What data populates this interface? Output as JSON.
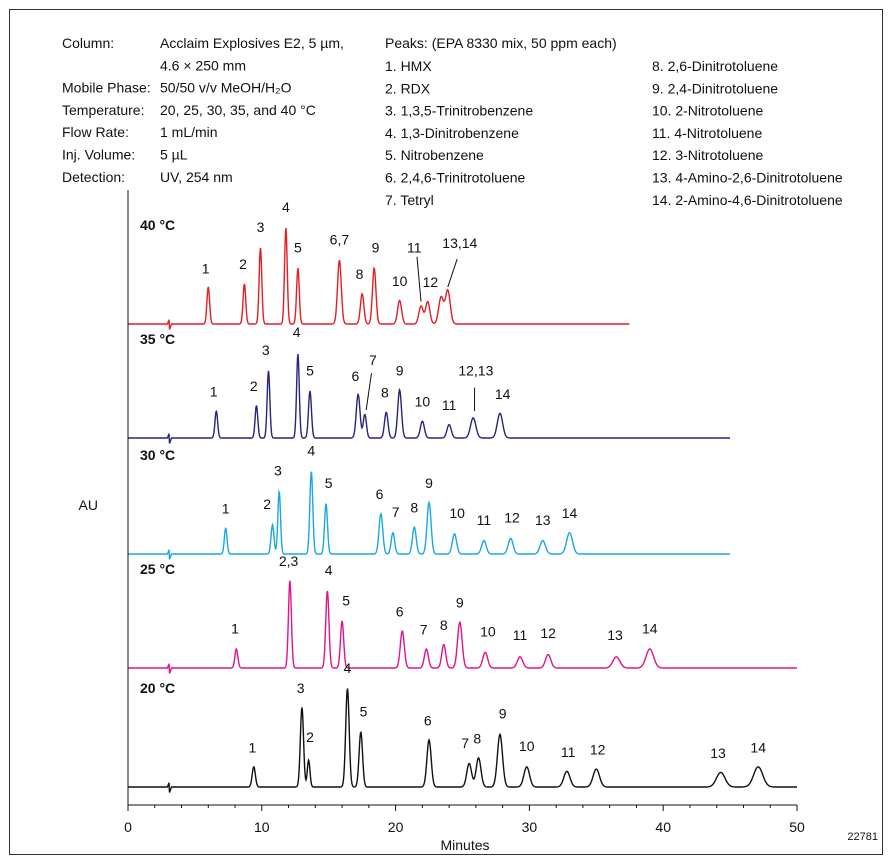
{
  "conditions": [
    {
      "label": "Column:",
      "values": [
        "Acclaim Explosives E2, 5 µm,",
        "4.6 × 250 mm"
      ]
    },
    {
      "label": "Mobile Phase:",
      "values": [
        "50/50 v/v MeOH/H₂O"
      ]
    },
    {
      "label": "Temperature:",
      "values": [
        "20, 25, 30, 35, and 40 °C"
      ]
    },
    {
      "label": "Flow Rate:",
      "values": [
        "1 mL/min"
      ]
    },
    {
      "label": "Inj. Volume:",
      "values": [
        "5 µL"
      ]
    },
    {
      "label": "Detection:",
      "values": [
        "UV, 254 nm"
      ]
    }
  ],
  "peaks_header": "Peaks: (EPA 8330 mix, 50 ppm each)",
  "peaks_col1": [
    "1. HMX",
    "2. RDX",
    "3. 1,3,5-Trinitrobenzene",
    "4. 1,3-Dinitrobenzene",
    "5. Nitrobenzene",
    "6. 2,4,6-Trinitrotoluene",
    "7. Tetryl"
  ],
  "peaks_col2": [
    "8. 2,6-Dinitrotoluene",
    "9. 2,4-Dinitrotoluene",
    "10. 2-Nitrotoluene",
    "11. 4-Nitrotoluene",
    "12. 3-Nitrotoluene",
    "13. 4-Amino-2,6-Dinitrotoluene",
    "14. 2-Amino-4,6-Dinitrotoluene"
  ],
  "figure_id": "22781",
  "chart_data": {
    "type": "line",
    "xlabel": "Minutes",
    "ylabel": "AU",
    "xlim": [
      0,
      50
    ],
    "xticks": [
      0,
      10,
      20,
      30,
      40,
      50
    ],
    "series": [
      {
        "name": "40 °C",
        "color": "#e31e24",
        "xend": 37.5,
        "peaks": [
          {
            "x": 6.0,
            "h": 0.33,
            "w": 0.1
          },
          {
            "x": 8.7,
            "h": 0.36,
            "w": 0.1
          },
          {
            "x": 9.9,
            "h": 0.68,
            "w": 0.1
          },
          {
            "x": 11.8,
            "h": 0.86,
            "w": 0.1
          },
          {
            "x": 12.7,
            "h": 0.5,
            "w": 0.1
          },
          {
            "x": 15.8,
            "h": 0.57,
            "w": 0.14
          },
          {
            "x": 17.5,
            "h": 0.27,
            "w": 0.13
          },
          {
            "x": 18.4,
            "h": 0.5,
            "w": 0.13
          },
          {
            "x": 20.3,
            "h": 0.21,
            "w": 0.15
          },
          {
            "x": 21.9,
            "h": 0.16,
            "w": 0.16
          },
          {
            "x": 22.4,
            "h": 0.2,
            "w": 0.16
          },
          {
            "x": 23.4,
            "h": 0.24,
            "w": 0.18
          },
          {
            "x": 23.9,
            "h": 0.3,
            "w": 0.18
          }
        ],
        "labels": [
          {
            "text": "1",
            "x": 5.8,
            "h": 0.45
          },
          {
            "text": "2",
            "x": 8.6,
            "h": 0.49
          },
          {
            "text": "3",
            "x": 9.9,
            "h": 0.82
          },
          {
            "text": "4",
            "x": 11.8,
            "h": 1.0
          },
          {
            "text": "5",
            "x": 12.7,
            "h": 0.64
          },
          {
            "text": "6,7",
            "x": 15.8,
            "h": 0.71
          },
          {
            "text": "8",
            "x": 17.3,
            "h": 0.4
          },
          {
            "text": "9",
            "x": 18.5,
            "h": 0.64
          },
          {
            "text": "10",
            "x": 20.3,
            "h": 0.34
          },
          {
            "text": "11",
            "x": 21.4,
            "h": 0.64
          },
          {
            "text": "12",
            "x": 22.6,
            "h": 0.33
          },
          {
            "text": "13,14",
            "x": 24.8,
            "h": 0.68
          }
        ]
      },
      {
        "name": "35 °C",
        "color": "#25247c",
        "xend": 45,
        "peaks": [
          {
            "x": 6.6,
            "h": 0.24,
            "w": 0.1
          },
          {
            "x": 9.6,
            "h": 0.29,
            "w": 0.1
          },
          {
            "x": 10.5,
            "h": 0.6,
            "w": 0.1
          },
          {
            "x": 12.7,
            "h": 0.75,
            "w": 0.1
          },
          {
            "x": 13.6,
            "h": 0.42,
            "w": 0.11
          },
          {
            "x": 17.2,
            "h": 0.39,
            "w": 0.14
          },
          {
            "x": 17.7,
            "h": 0.21,
            "w": 0.12
          },
          {
            "x": 19.3,
            "h": 0.23,
            "w": 0.13
          },
          {
            "x": 20.3,
            "h": 0.43,
            "w": 0.14
          },
          {
            "x": 22.0,
            "h": 0.15,
            "w": 0.15
          },
          {
            "x": 24.0,
            "h": 0.12,
            "w": 0.16
          },
          {
            "x": 25.8,
            "h": 0.18,
            "w": 0.2
          },
          {
            "x": 27.8,
            "h": 0.22,
            "w": 0.2
          }
        ],
        "labels": [
          {
            "text": "1",
            "x": 6.4,
            "h": 0.37
          },
          {
            "text": "2",
            "x": 9.4,
            "h": 0.42
          },
          {
            "text": "3",
            "x": 10.3,
            "h": 0.74
          },
          {
            "text": "4",
            "x": 12.6,
            "h": 0.9
          },
          {
            "text": "5",
            "x": 13.6,
            "h": 0.56
          },
          {
            "text": "6",
            "x": 17.0,
            "h": 0.51
          },
          {
            "text": "7",
            "x": 18.3,
            "h": 0.65
          },
          {
            "text": "8",
            "x": 19.2,
            "h": 0.36
          },
          {
            "text": "9",
            "x": 20.3,
            "h": 0.56
          },
          {
            "text": "10",
            "x": 22.0,
            "h": 0.28
          },
          {
            "text": "11",
            "x": 24.0,
            "h": 0.25
          },
          {
            "text": "12,13",
            "x": 26.0,
            "h": 0.56
          },
          {
            "text": "14",
            "x": 28.0,
            "h": 0.35
          }
        ]
      },
      {
        "name": "30 °C",
        "color": "#1ba7e0",
        "xend": 45,
        "peaks": [
          {
            "x": 7.3,
            "h": 0.23,
            "w": 0.1
          },
          {
            "x": 10.8,
            "h": 0.26,
            "w": 0.11
          },
          {
            "x": 11.3,
            "h": 0.56,
            "w": 0.1
          },
          {
            "x": 13.7,
            "h": 0.74,
            "w": 0.11
          },
          {
            "x": 14.8,
            "h": 0.45,
            "w": 0.11
          },
          {
            "x": 18.9,
            "h": 0.36,
            "w": 0.14
          },
          {
            "x": 19.8,
            "h": 0.19,
            "w": 0.13
          },
          {
            "x": 21.4,
            "h": 0.24,
            "w": 0.14
          },
          {
            "x": 22.5,
            "h": 0.46,
            "w": 0.15
          },
          {
            "x": 24.4,
            "h": 0.18,
            "w": 0.16
          },
          {
            "x": 26.6,
            "h": 0.12,
            "w": 0.17
          },
          {
            "x": 28.6,
            "h": 0.14,
            "w": 0.18
          },
          {
            "x": 31.0,
            "h": 0.12,
            "w": 0.2
          },
          {
            "x": 33.0,
            "h": 0.19,
            "w": 0.22
          }
        ],
        "labels": [
          {
            "text": "1",
            "x": 7.3,
            "h": 0.36
          },
          {
            "text": "2",
            "x": 10.4,
            "h": 0.4
          },
          {
            "text": "3",
            "x": 11.2,
            "h": 0.7
          },
          {
            "text": "4",
            "x": 13.7,
            "h": 0.88
          },
          {
            "text": "5",
            "x": 15.0,
            "h": 0.59
          },
          {
            "text": "6",
            "x": 18.8,
            "h": 0.49
          },
          {
            "text": "7",
            "x": 20.0,
            "h": 0.33
          },
          {
            "text": "8",
            "x": 21.4,
            "h": 0.37
          },
          {
            "text": "9",
            "x": 22.5,
            "h": 0.59
          },
          {
            "text": "10",
            "x": 24.6,
            "h": 0.32
          },
          {
            "text": "11",
            "x": 26.6,
            "h": 0.26
          },
          {
            "text": "12",
            "x": 28.7,
            "h": 0.28
          },
          {
            "text": "13",
            "x": 31.0,
            "h": 0.26
          },
          {
            "text": "14",
            "x": 33.0,
            "h": 0.32
          }
        ]
      },
      {
        "name": "25 °C",
        "color": "#e0138c",
        "xend": 50,
        "peaks": [
          {
            "x": 8.1,
            "h": 0.17,
            "w": 0.11
          },
          {
            "x": 12.1,
            "h": 0.78,
            "w": 0.11
          },
          {
            "x": 14.9,
            "h": 0.69,
            "w": 0.12
          },
          {
            "x": 16.0,
            "h": 0.42,
            "w": 0.12
          },
          {
            "x": 20.5,
            "h": 0.33,
            "w": 0.15
          },
          {
            "x": 22.3,
            "h": 0.17,
            "w": 0.15
          },
          {
            "x": 23.6,
            "h": 0.21,
            "w": 0.15
          },
          {
            "x": 24.8,
            "h": 0.41,
            "w": 0.17
          },
          {
            "x": 26.7,
            "h": 0.14,
            "w": 0.18
          },
          {
            "x": 29.3,
            "h": 0.1,
            "w": 0.2
          },
          {
            "x": 31.4,
            "h": 0.12,
            "w": 0.2
          },
          {
            "x": 36.5,
            "h": 0.1,
            "w": 0.26
          },
          {
            "x": 39.0,
            "h": 0.17,
            "w": 0.28
          }
        ],
        "labels": [
          {
            "text": "1",
            "x": 8.0,
            "h": 0.31
          },
          {
            "text": "2,3",
            "x": 12.0,
            "h": 0.91
          },
          {
            "text": "4",
            "x": 15.0,
            "h": 0.83
          },
          {
            "text": "5",
            "x": 16.3,
            "h": 0.56
          },
          {
            "text": "6",
            "x": 20.3,
            "h": 0.46
          },
          {
            "text": "7",
            "x": 22.1,
            "h": 0.3
          },
          {
            "text": "8",
            "x": 23.6,
            "h": 0.34
          },
          {
            "text": "9",
            "x": 24.8,
            "h": 0.54
          },
          {
            "text": "10",
            "x": 26.9,
            "h": 0.28
          },
          {
            "text": "11",
            "x": 29.3,
            "h": 0.25
          },
          {
            "text": "12",
            "x": 31.4,
            "h": 0.27
          },
          {
            "text": "13",
            "x": 36.4,
            "h": 0.25
          },
          {
            "text": "14",
            "x": 39.0,
            "h": 0.31
          }
        ]
      },
      {
        "name": "20 °C",
        "color": "#111111",
        "xend": 50,
        "peaks": [
          {
            "x": 9.4,
            "h": 0.18,
            "w": 0.12
          },
          {
            "x": 13.0,
            "h": 0.71,
            "w": 0.12
          },
          {
            "x": 13.5,
            "h": 0.24,
            "w": 0.1
          },
          {
            "x": 16.4,
            "h": 0.88,
            "w": 0.13
          },
          {
            "x": 17.4,
            "h": 0.49,
            "w": 0.13
          },
          {
            "x": 22.5,
            "h": 0.42,
            "w": 0.16
          },
          {
            "x": 25.5,
            "h": 0.21,
            "w": 0.18
          },
          {
            "x": 26.2,
            "h": 0.26,
            "w": 0.18
          },
          {
            "x": 27.8,
            "h": 0.47,
            "w": 0.19
          },
          {
            "x": 29.8,
            "h": 0.18,
            "w": 0.21
          },
          {
            "x": 32.8,
            "h": 0.14,
            "w": 0.23
          },
          {
            "x": 35.0,
            "h": 0.16,
            "w": 0.24
          },
          {
            "x": 44.3,
            "h": 0.13,
            "w": 0.32
          },
          {
            "x": 47.1,
            "h": 0.18,
            "w": 0.34
          }
        ],
        "labels": [
          {
            "text": "1",
            "x": 9.3,
            "h": 0.31
          },
          {
            "text": "3",
            "x": 12.9,
            "h": 0.84
          },
          {
            "text": "2",
            "x": 13.6,
            "h": 0.4
          },
          {
            "text": "4",
            "x": 16.4,
            "h": 1.02
          },
          {
            "text": "5",
            "x": 17.6,
            "h": 0.63
          },
          {
            "text": "6",
            "x": 22.4,
            "h": 0.55
          },
          {
            "text": "7",
            "x": 25.2,
            "h": 0.35
          },
          {
            "text": "8",
            "x": 26.1,
            "h": 0.39
          },
          {
            "text": "9",
            "x": 28.0,
            "h": 0.61
          },
          {
            "text": "10",
            "x": 29.8,
            "h": 0.32
          },
          {
            "text": "11",
            "x": 32.9,
            "h": 0.27
          },
          {
            "text": "12",
            "x": 35.1,
            "h": 0.29
          },
          {
            "text": "13",
            "x": 44.1,
            "h": 0.26
          },
          {
            "text": "14",
            "x": 47.1,
            "h": 0.31
          }
        ]
      }
    ]
  }
}
